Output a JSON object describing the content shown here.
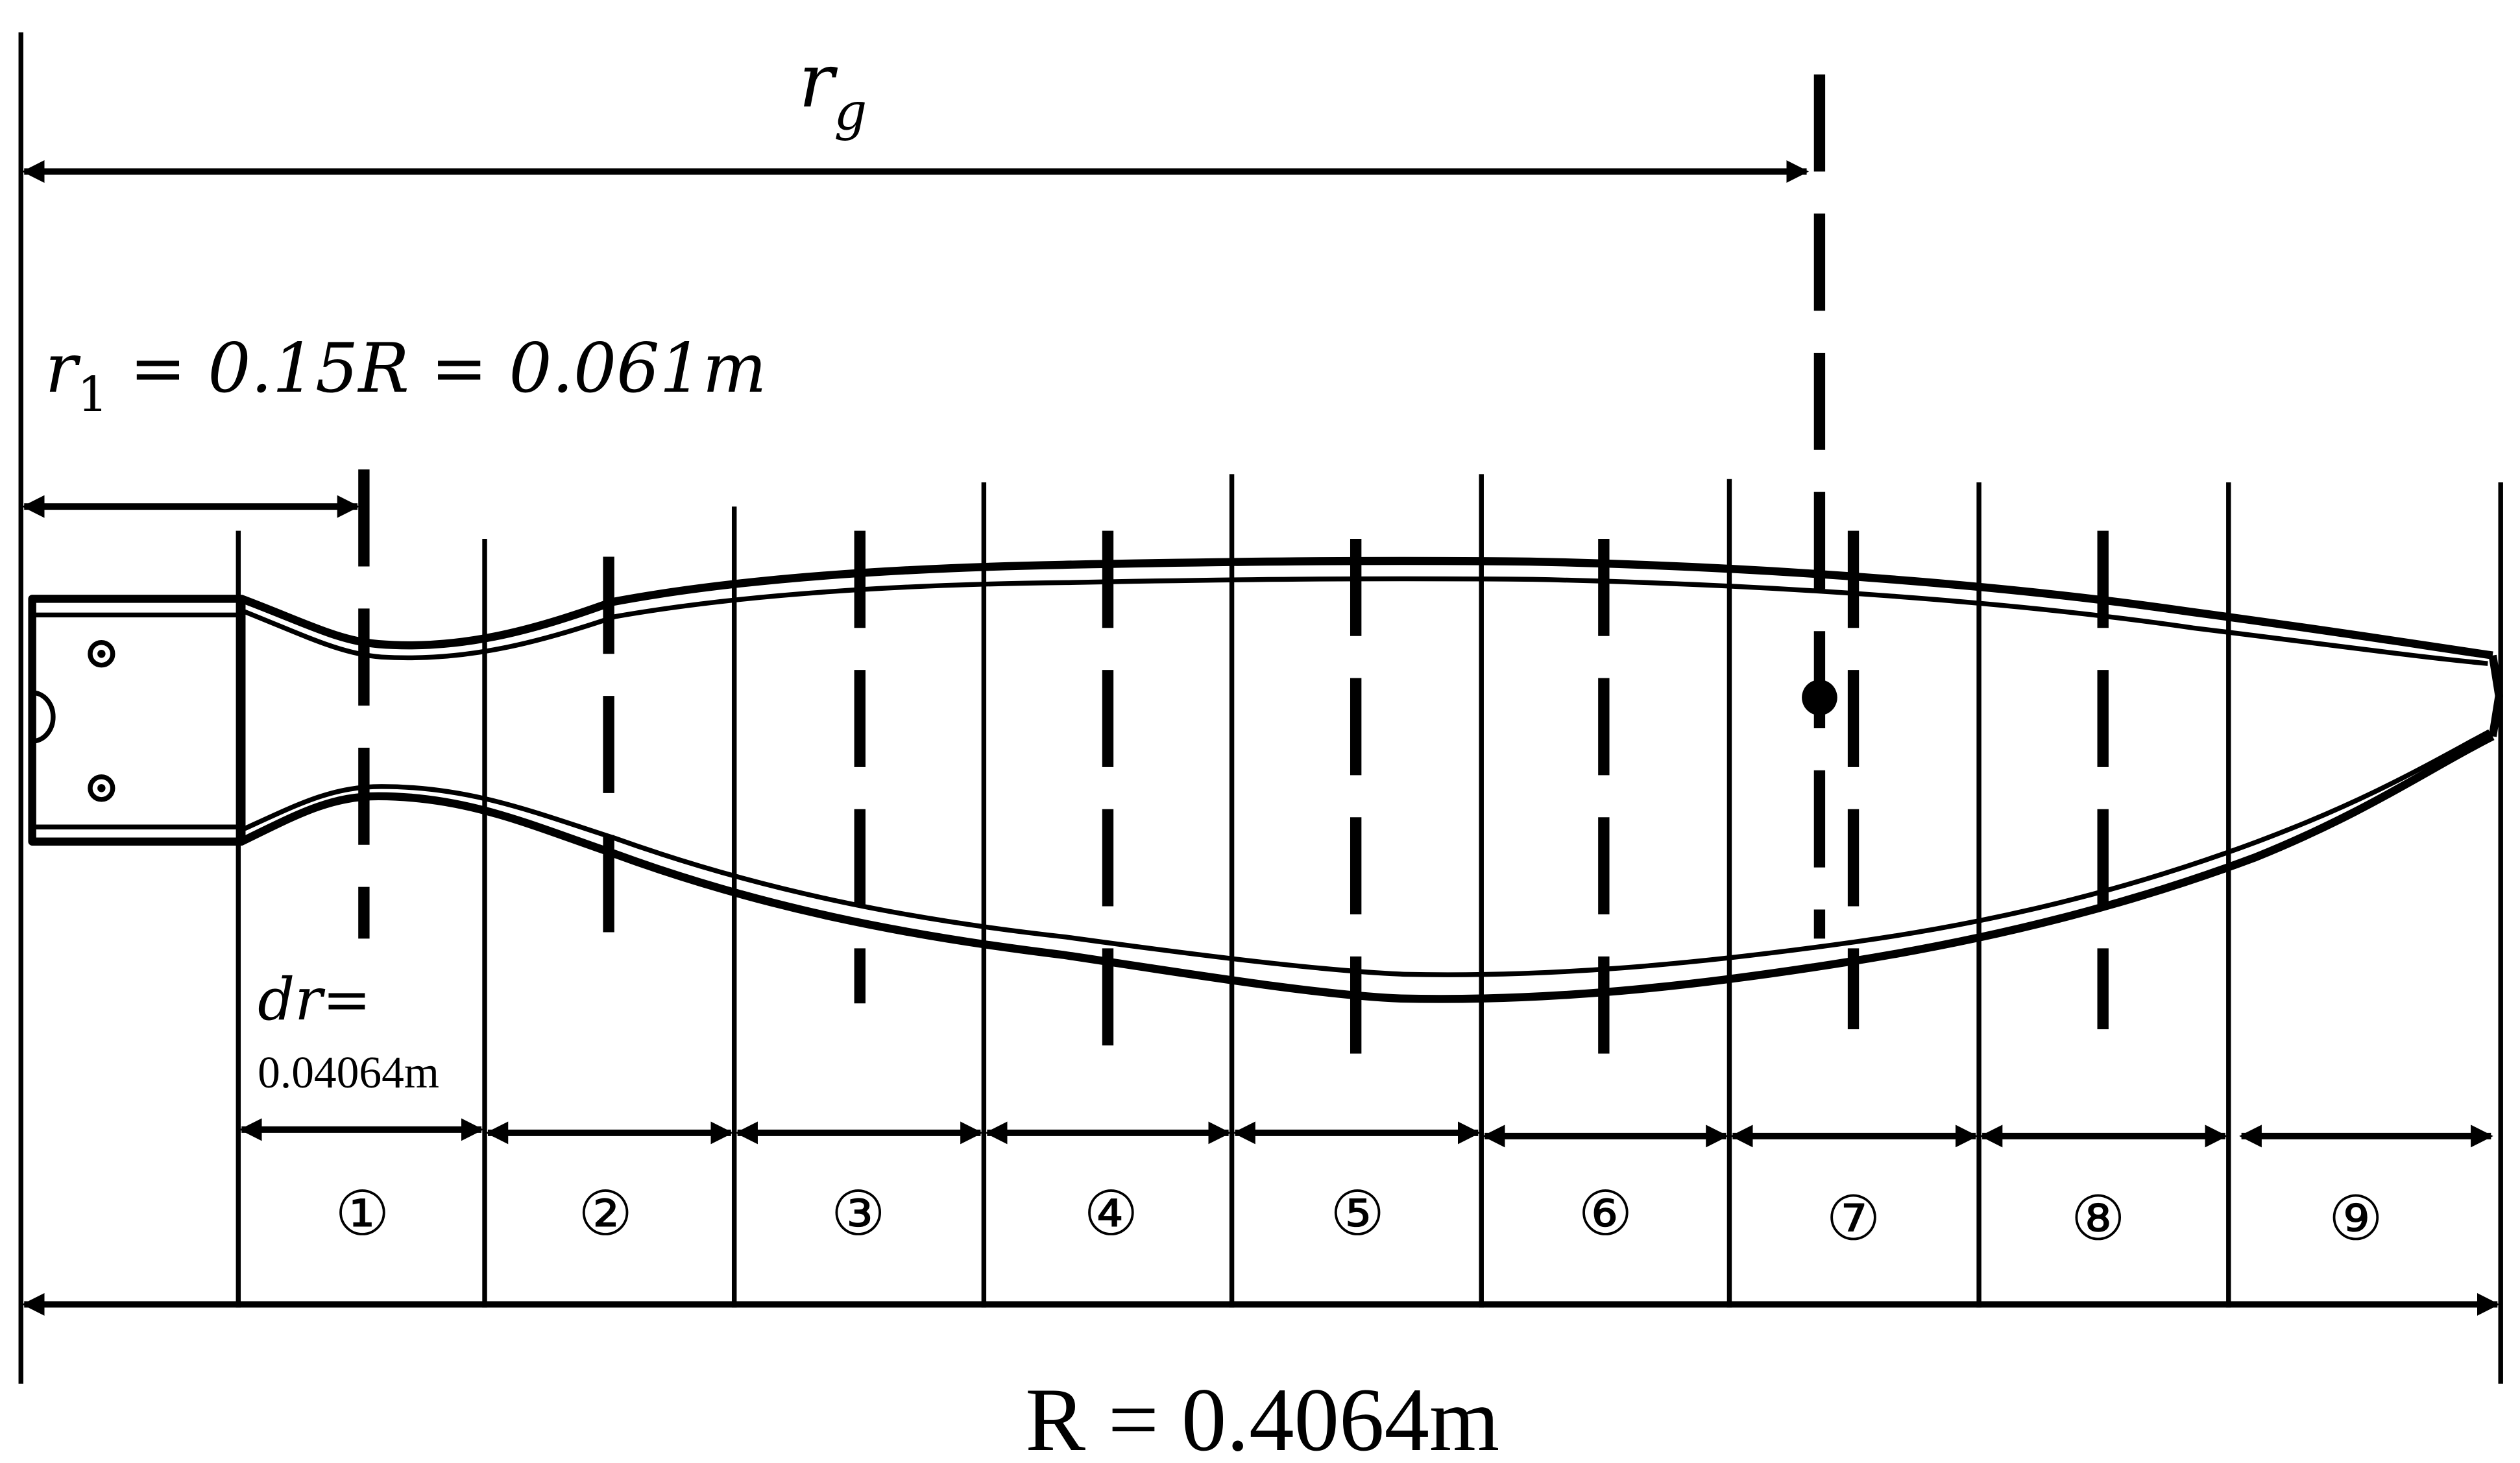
{
  "labels": {
    "rg_main": "r",
    "rg_sub": "g",
    "r1_main": "r",
    "r1_sub": "1",
    "r1_rest": " = 0.15R = 0.061m",
    "dr_label": "dr=",
    "dr_value": "0.04064m",
    "R_label": "R = 0.4064m"
  },
  "segments": [
    "①",
    "②",
    "③",
    "④",
    "⑤",
    "⑥",
    "⑦",
    "⑧",
    "⑨"
  ],
  "colors": {
    "line": "#000000",
    "background": "#ffffff"
  }
}
